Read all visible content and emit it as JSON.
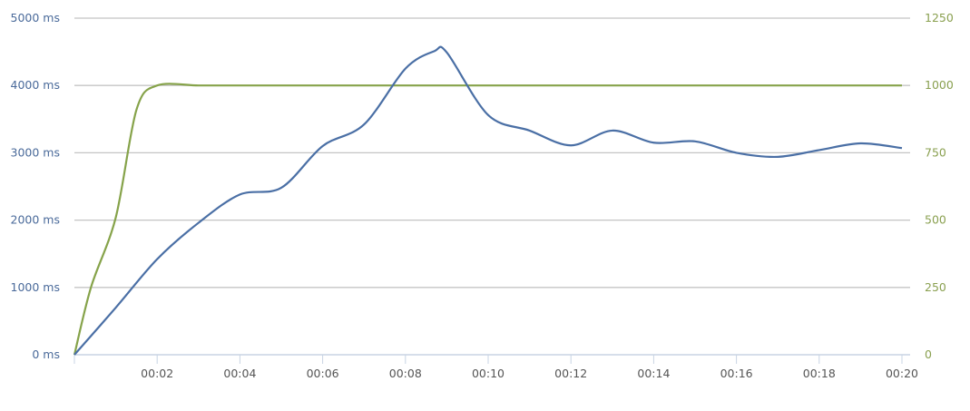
{
  "chart_data": {
    "type": "line",
    "x_ticks": [
      "00:02",
      "00:04",
      "00:06",
      "00:08",
      "00:10",
      "00:12",
      "00:14",
      "00:16",
      "00:18",
      "00:20"
    ],
    "xlim": [
      0,
      20
    ],
    "y_left": {
      "ticks": [
        "0 ms",
        "1000 ms",
        "2000 ms",
        "3000 ms",
        "4000 ms",
        "5000 ms"
      ],
      "ylim": [
        0,
        5000
      ]
    },
    "y_right": {
      "ticks": [
        "0",
        "250",
        "500",
        "750",
        "1000",
        "1250"
      ],
      "ylim": [
        0,
        1250
      ]
    },
    "grid": true,
    "series": [
      {
        "axis": "left",
        "color": "#4a6fa5",
        "x": [
          0,
          1,
          2,
          3,
          4,
          5,
          6,
          7,
          8,
          8.7,
          9,
          10,
          11,
          12,
          13,
          14,
          15,
          16,
          17,
          18,
          19,
          20
        ],
        "values": [
          0,
          700,
          1420,
          1960,
          2380,
          2480,
          3100,
          3420,
          4250,
          4510,
          4490,
          3560,
          3330,
          3110,
          3330,
          3150,
          3170,
          3000,
          2940,
          3040,
          3140,
          3070
        ]
      },
      {
        "axis": "right",
        "color": "#86a34a",
        "x": [
          0,
          0.4,
          1,
          1.5,
          2,
          3,
          4,
          5,
          6,
          7,
          8,
          9,
          10,
          11,
          12,
          13,
          14,
          15,
          16,
          17,
          18,
          19,
          20
        ],
        "values": [
          0,
          250,
          510,
          910,
          1000,
          1000,
          1000,
          1000,
          1000,
          1000,
          1000,
          1000,
          1000,
          1000,
          1000,
          1000,
          1000,
          1000,
          1000,
          1000,
          1000,
          1000,
          1000
        ]
      }
    ]
  }
}
